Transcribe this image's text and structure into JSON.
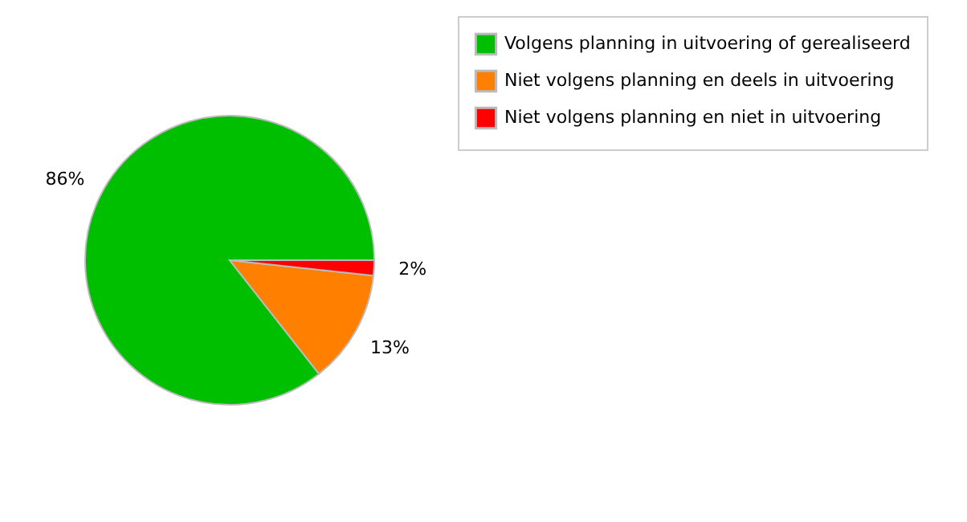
{
  "chart_data": {
    "type": "pie",
    "categories": [
      "Volgens planning in uitvoering of gerealiseerd",
      "Niet volgens planning en deels in uitvoering",
      "Niet volgens planning en niet in uitvoering"
    ],
    "values": [
      85.6,
      12.7,
      1.7
    ],
    "value_labels": [
      "86%",
      "13%",
      "2%"
    ],
    "colors": [
      "#00bf00",
      "#ff8000",
      "#ff0000"
    ],
    "legend": "top right"
  }
}
